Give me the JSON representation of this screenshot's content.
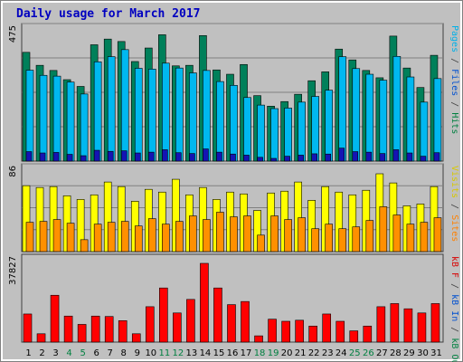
{
  "chart_data": {
    "type": "bar",
    "title": "Daily usage for March 2017",
    "x": [
      "1",
      "2",
      "3",
      "4",
      "5",
      "6",
      "7",
      "8",
      "9",
      "10",
      "11",
      "12",
      "13",
      "14",
      "15",
      "16",
      "17",
      "18",
      "19",
      "20",
      "21",
      "22",
      "23",
      "24",
      "25",
      "26",
      "27",
      "28",
      "29",
      "30",
      "31"
    ],
    "weekend_days": [
      "4",
      "5",
      "11",
      "12",
      "18",
      "19",
      "25",
      "26"
    ],
    "panels": [
      {
        "id": "top",
        "ymax": 475,
        "ymax_label": "475",
        "right_label": [
          {
            "text": "Pages",
            "color": "#00b0e8"
          },
          {
            "text": " / ",
            "color": "#404040"
          },
          {
            "text": "Files",
            "color": "#0050d0"
          },
          {
            "text": " / ",
            "color": "#404040"
          },
          {
            "text": "Hits",
            "color": "#008040"
          }
        ],
        "series": [
          {
            "name": "Hits",
            "color": "#00805a",
            "values": [
              402,
              354,
              335,
              301,
              276,
              430,
              451,
              442,
              368,
              418,
              467,
              352,
              354,
              464,
              337,
              321,
              357,
              242,
              203,
              220,
              247,
              297,
              330,
              414,
              374,
              335,
              308,
              462,
              344,
              272,
              391
            ]
          },
          {
            "name": "Files",
            "color": "#00b8f0",
            "values": [
              336,
              317,
              314,
              292,
              248,
              367,
              386,
              412,
              343,
              340,
              362,
              344,
              326,
              335,
              294,
              280,
              235,
              207,
              194,
              196,
              218,
              239,
              262,
              386,
              342,
              321,
              299,
              387,
              311,
              218,
              305
            ]
          },
          {
            "name": "Pages",
            "color": "#1414b4",
            "values": [
              35,
              30,
              32,
              25,
              20,
              40,
              36,
              38,
              30,
              33,
              42,
              31,
              28,
              45,
              33,
              26,
              22,
              14,
              10,
              18,
              22,
              27,
              26,
              48,
              35,
              33,
              28,
              42,
              30,
              18,
              31
            ]
          }
        ]
      },
      {
        "id": "mid",
        "ymax": 86,
        "ymax_label": "86",
        "right_label": [
          {
            "text": "Visits",
            "color": "#d8c800"
          },
          {
            "text": " / ",
            "color": "#404040"
          },
          {
            "text": "Sites",
            "color": "#ff8000"
          }
        ],
        "series": [
          {
            "name": "Visits",
            "color": "#ffff00",
            "values": [
              72,
              70,
              71,
              61,
              57,
              62,
              76,
              71,
              55,
              68,
              65,
              79,
              62,
              70,
              57,
              65,
              63,
              45,
              64,
              66,
              76,
              56,
              71,
              65,
              62,
              67,
              85,
              75,
              50,
              52,
              71
            ]
          },
          {
            "name": "Sites",
            "color": "#ff9000",
            "values": [
              32,
              33,
              35,
              31,
              13,
              30,
              32,
              33,
              28,
              36,
              30,
              33,
              39,
              35,
              43,
              38,
              39,
              18,
              39,
              35,
              37,
              25,
              30,
              25,
              27,
              34,
              49,
              40,
              30,
              32,
              37
            ]
          }
        ]
      },
      {
        "id": "bot",
        "ymax": 37827,
        "ymax_label": "37827",
        "right_label": [
          {
            "text": "kB F",
            "color": "#d80000"
          },
          {
            "text": " / ",
            "color": "#404040"
          },
          {
            "text": "kB In",
            "color": "#0050d0"
          },
          {
            "text": " / ",
            "color": "#404040"
          },
          {
            "text": "kB Out",
            "color": "#008040"
          }
        ],
        "series": [
          {
            "name": "kB F",
            "color": "#ff0000",
            "values": [
              13500,
              4000,
              22500,
              12500,
              8500,
              12500,
              12300,
              10300,
              4000,
              17000,
              26000,
              14000,
              20500,
              37827,
              26000,
              18000,
              19500,
              3000,
              11000,
              10000,
              10500,
              7700,
              13500,
              10000,
              5400,
              7700,
              17000,
              18500,
              16000,
              14000,
              18500
            ]
          }
        ]
      }
    ]
  }
}
